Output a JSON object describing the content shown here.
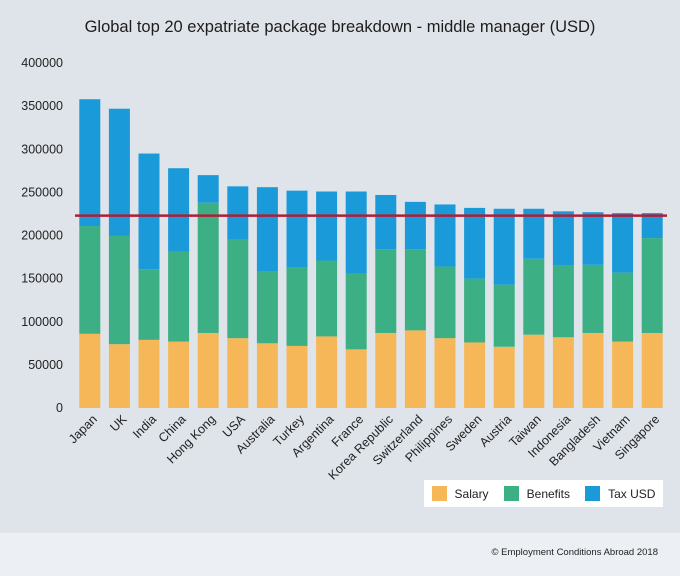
{
  "chart_data": {
    "type": "bar",
    "stacked": true,
    "title": "Global top 20 expatriate package breakdown - middle manager (USD)",
    "categories": [
      "Japan",
      "UK",
      "India",
      "China",
      "Hong Kong",
      "USA",
      "Australia",
      "Turkey",
      "Argentina",
      "France",
      "Korea Republic",
      "Switzerland",
      "Philippines",
      "Sweden",
      "Austria",
      "Taiwan",
      "Indonesia",
      "Bangladesh",
      "Vietnam",
      "Singapore"
    ],
    "series": [
      {
        "name": "Salary",
        "color": "#f5b757",
        "values": [
          86000,
          74000,
          79000,
          77000,
          87000,
          81000,
          75000,
          72000,
          83000,
          68000,
          87000,
          90000,
          81000,
          76000,
          71000,
          85000,
          82000,
          87000,
          77000,
          87000
        ]
      },
      {
        "name": "Benefits",
        "color": "#3daf84",
        "values": [
          125000,
          126000,
          82000,
          104000,
          151000,
          114000,
          83000,
          91000,
          88000,
          88000,
          97000,
          94000,
          83000,
          74000,
          72000,
          88000,
          83000,
          79000,
          80000,
          110000
        ]
      },
      {
        "name": "Tax USD",
        "color": "#1a9ad9",
        "values": [
          147000,
          147000,
          134000,
          97000,
          32000,
          62000,
          98000,
          89000,
          80000,
          95000,
          63000,
          55000,
          72000,
          82000,
          88000,
          58000,
          63000,
          61000,
          69000,
          29000
        ]
      }
    ],
    "reference_line": {
      "value": 223000,
      "color": "#b21d35"
    },
    "ylim": [
      0,
      400000
    ],
    "yticks": [
      "0",
      "50000",
      "100000",
      "150000",
      "200000",
      "250000",
      "300000",
      "350000",
      "400000"
    ],
    "legend_position": "bottom-right",
    "grid": false
  },
  "footer": {
    "credit": "© Employment Conditions Abroad 2018"
  }
}
